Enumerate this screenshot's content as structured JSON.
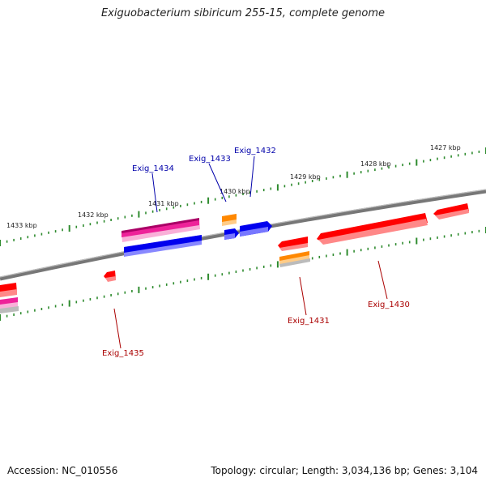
{
  "title": "Exiguobacterium sibiricum 255-15, complete genome",
  "footer": {
    "accession": "Accession: NC_010556",
    "summary": "Topology: circular; Length: 3,034,136 bp; Genes: 3,104"
  },
  "colors": {
    "backbone": "#888888",
    "tick": "#2e8b2e",
    "forward_label": "#0000aa",
    "reverse_label": "#aa0000",
    "red": "#ff0000",
    "blue": "#0000ee",
    "magenta": "#ee2299",
    "orange": "#ff8800",
    "gray": "#bbbbbb"
  },
  "kbp_ticks": [
    {
      "label": "1433 kbp"
    },
    {
      "label": "1432 kbp"
    },
    {
      "label": "1431 kbp"
    },
    {
      "label": "1430 kbp"
    },
    {
      "label": "1429 kbp"
    },
    {
      "label": "1428 kbp"
    },
    {
      "label": "1427 kbp"
    }
  ],
  "gene_labels": [
    {
      "text": "Exig_1434",
      "strand": "forward"
    },
    {
      "text": "Exig_1433",
      "strand": "forward"
    },
    {
      "text": "Exig_1432",
      "strand": "forward"
    },
    {
      "text": "Exig_1435",
      "strand": "reverse"
    },
    {
      "text": "Exig_1431",
      "strand": "reverse"
    },
    {
      "text": "Exig_1430",
      "strand": "reverse"
    }
  ]
}
